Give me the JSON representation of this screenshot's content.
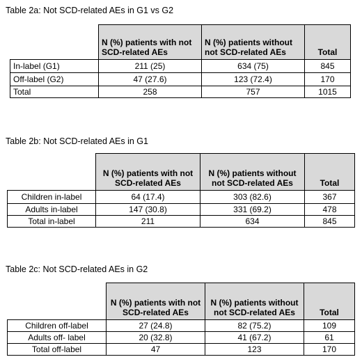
{
  "tables": [
    {
      "caption": "Table 2a: Not SCD-related AEs in G1 vs G2",
      "headers": [
        "N (%) patients with not SCD-related AEs",
        "N (%) patients without not SCD-related AEs",
        "Total"
      ],
      "rows": [
        [
          "In-label (G1)",
          "211 (25)",
          "634 (75)",
          "845"
        ],
        [
          "Off-label (G2)",
          "47 (27.6)",
          "123 (72.4)",
          "170"
        ],
        [
          "Total",
          "258",
          "757",
          "1015"
        ]
      ]
    },
    {
      "caption": "Table 2b: Not SCD-related AEs in G1",
      "headers": [
        "N (%) patients with not SCD-related AEs",
        "N (%) patients without not SCD-related AEs",
        "Total"
      ],
      "rows": [
        [
          "Children in-label",
          "64 (17.4)",
          "303 (82.6)",
          "367"
        ],
        [
          "Adults in-label",
          "147 (30.8)",
          "331 (69.2)",
          "478"
        ],
        [
          "Total in-label",
          "211",
          "634",
          "845"
        ]
      ]
    },
    {
      "caption": "Table 2c: Not SCD-related AEs in G2",
      "headers": [
        "N (%) patients with not SCD-related AEs",
        "N (%) patients without not SCD-related AEs",
        "Total"
      ],
      "rows": [
        [
          "Children off-label",
          "27 (24.8)",
          "82 (75.2)",
          "109"
        ],
        [
          "Adults off- label",
          "20 (32.8)",
          "41 (67.2)",
          "61"
        ],
        [
          "Total off-label",
          "47",
          "123",
          "170"
        ]
      ]
    }
  ]
}
